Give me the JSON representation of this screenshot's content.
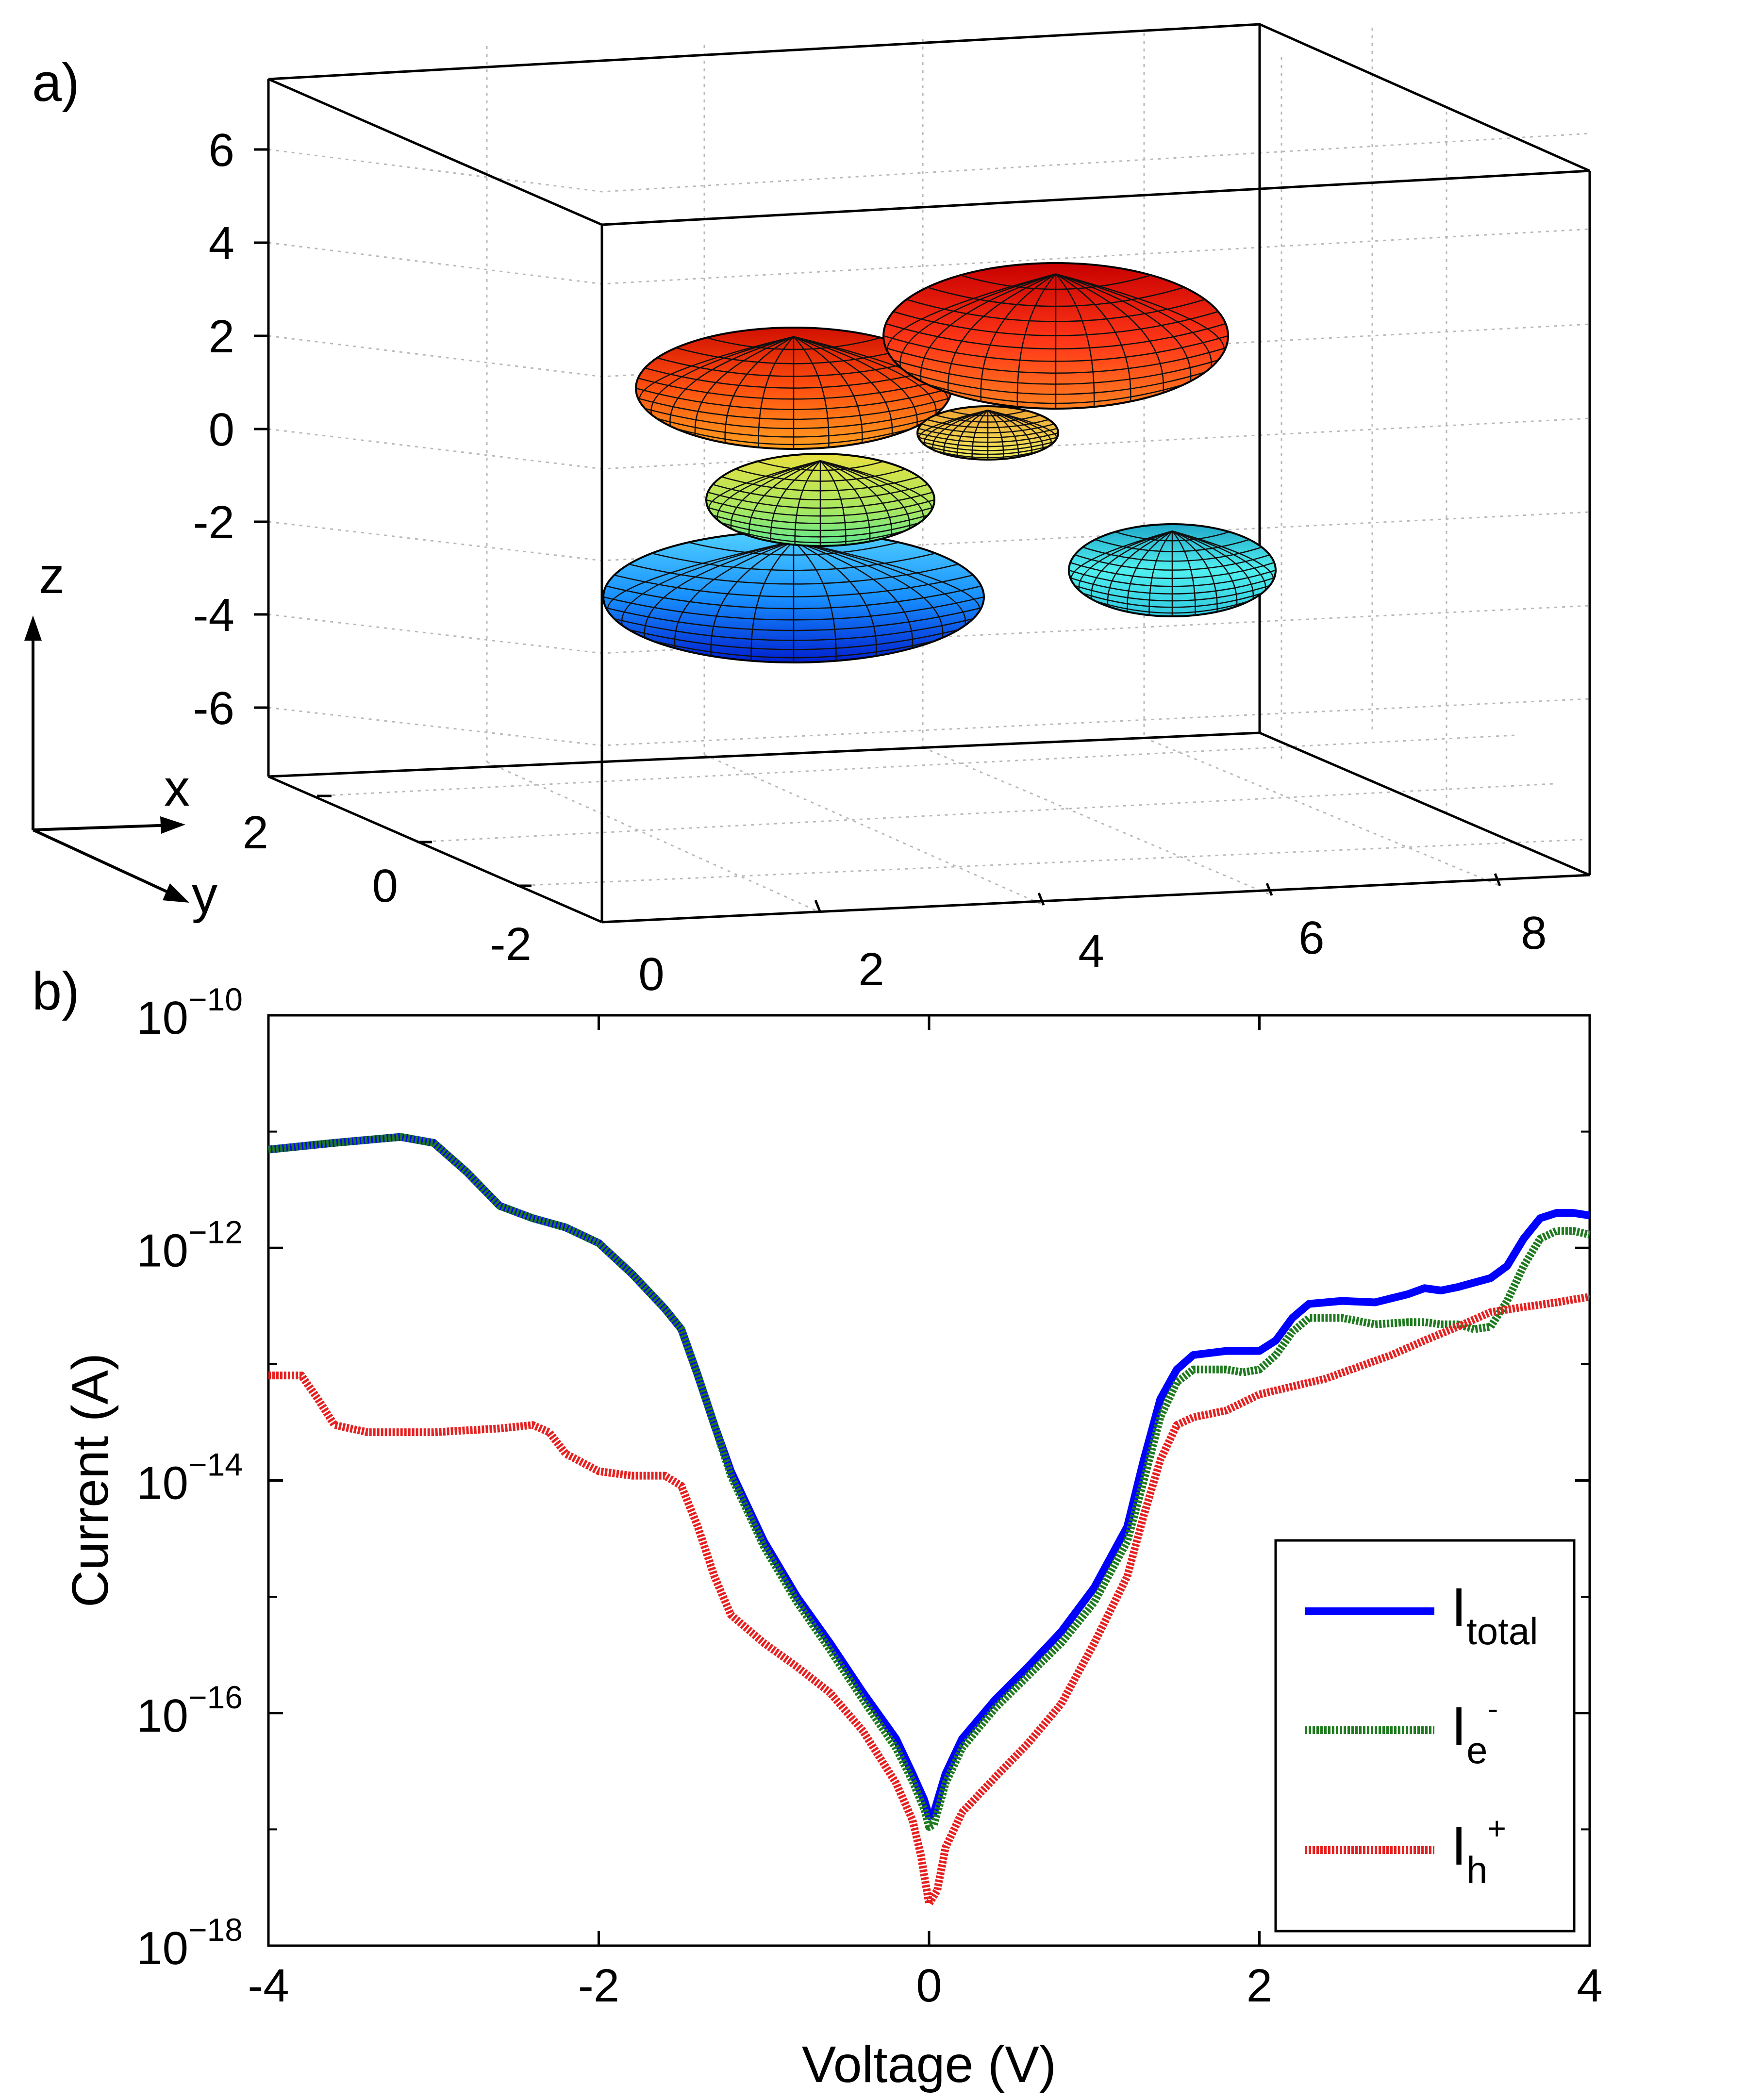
{
  "panel_a": {
    "label": "a)",
    "axis_letters": {
      "x": "x",
      "y": "y",
      "z": "z"
    },
    "z_ticks": [
      "6",
      "4",
      "2",
      "0",
      "-2",
      "-4",
      "-6"
    ],
    "y_ticks": [
      "2",
      "0",
      "-2"
    ],
    "x_ticks": [
      "0",
      "2",
      "4",
      "6",
      "8"
    ],
    "ellipsoids": [
      {
        "name": "ellipsoid-red-large",
        "color": "#e8321c"
      },
      {
        "name": "ellipsoid-orange",
        "color": "#f0641e"
      },
      {
        "name": "ellipsoid-yellow-small",
        "color": "#e0c040"
      },
      {
        "name": "ellipsoid-yellow-green",
        "color": "#b8e050"
      },
      {
        "name": "ellipsoid-blue",
        "color": "#1e8ce6"
      },
      {
        "name": "ellipsoid-cyan",
        "color": "#32c8dc"
      }
    ]
  },
  "panel_b": {
    "label": "b)"
  },
  "chart_data": {
    "type": "line",
    "xlabel": "Voltage (V)",
    "ylabel": "Current (A)",
    "xlim": [
      -4,
      4
    ],
    "ylim": [
      1e-18,
      1e-10
    ],
    "yscale": "log",
    "x_ticks": [
      "-4",
      "-2",
      "0",
      "2",
      "4"
    ],
    "y_ticks": [
      {
        "base": "10",
        "exp": "-10"
      },
      {
        "base": "10",
        "exp": "-12"
      },
      {
        "base": "10",
        "exp": "-14"
      },
      {
        "base": "10",
        "exp": "-16"
      },
      {
        "base": "10",
        "exp": "-18"
      }
    ],
    "legend_position": "bottom-right",
    "series": [
      {
        "name": "I_total",
        "legend_main": "I",
        "legend_sub": "total",
        "legend_sup": "",
        "color": "#0000ff",
        "style": "solid",
        "points": [
          [
            -4.0,
            7e-12
          ],
          [
            -3.6,
            8e-12
          ],
          [
            -3.2,
            9e-12
          ],
          [
            -3.0,
            8e-12
          ],
          [
            -2.8,
            4.5e-12
          ],
          [
            -2.6,
            2.3e-12
          ],
          [
            -2.4,
            1.8e-12
          ],
          [
            -2.2,
            1.5e-12
          ],
          [
            -2.0,
            1.1e-12
          ],
          [
            -1.8,
            6e-13
          ],
          [
            -1.6,
            3e-13
          ],
          [
            -1.5,
            2e-13
          ],
          [
            -1.4,
            8e-14
          ],
          [
            -1.3,
            3e-14
          ],
          [
            -1.2,
            1.2e-14
          ],
          [
            -1.0,
            3e-15
          ],
          [
            -0.8,
            1e-15
          ],
          [
            -0.6,
            4e-16
          ],
          [
            -0.4,
            1.5e-16
          ],
          [
            -0.2,
            6e-17
          ],
          [
            -0.1,
            3e-17
          ],
          [
            -0.03,
            1.8e-17
          ],
          [
            0.0,
            1.3e-17
          ],
          [
            0.03,
            1.4e-17
          ],
          [
            0.1,
            3e-17
          ],
          [
            0.2,
            6e-17
          ],
          [
            0.4,
            1.3e-16
          ],
          [
            0.6,
            2.5e-16
          ],
          [
            0.8,
            5e-16
          ],
          [
            1.0,
            1.2e-15
          ],
          [
            1.2,
            4e-15
          ],
          [
            1.3,
            1.5e-14
          ],
          [
            1.4,
            5e-14
          ],
          [
            1.5,
            9e-14
          ],
          [
            1.6,
            1.2e-13
          ],
          [
            1.8,
            1.3e-13
          ],
          [
            2.0,
            1.3e-13
          ],
          [
            2.1,
            1.6e-13
          ],
          [
            2.2,
            2.5e-13
          ],
          [
            2.3,
            3.3e-13
          ],
          [
            2.5,
            3.5e-13
          ],
          [
            2.7,
            3.4e-13
          ],
          [
            2.9,
            4e-13
          ],
          [
            3.0,
            4.5e-13
          ],
          [
            3.1,
            4.3e-13
          ],
          [
            3.2,
            4.6e-13
          ],
          [
            3.4,
            5.5e-13
          ],
          [
            3.5,
            7e-13
          ],
          [
            3.6,
            1.2e-12
          ],
          [
            3.7,
            1.8e-12
          ],
          [
            3.8,
            2e-12
          ],
          [
            3.9,
            2e-12
          ],
          [
            4.0,
            1.9e-12
          ]
        ]
      },
      {
        "name": "I_e-",
        "legend_main": "I",
        "legend_sub": "e",
        "legend_sup": "-",
        "color": "#1e7a1e",
        "style": "dotted",
        "points": [
          [
            -4.0,
            7e-12
          ],
          [
            -3.6,
            8e-12
          ],
          [
            -3.2,
            9e-12
          ],
          [
            -3.0,
            8e-12
          ],
          [
            -2.8,
            4.5e-12
          ],
          [
            -2.6,
            2.3e-12
          ],
          [
            -2.4,
            1.8e-12
          ],
          [
            -2.2,
            1.5e-12
          ],
          [
            -2.0,
            1.1e-12
          ],
          [
            -1.8,
            6e-13
          ],
          [
            -1.6,
            3e-13
          ],
          [
            -1.5,
            2e-13
          ],
          [
            -1.4,
            8e-14
          ],
          [
            -1.3,
            3e-14
          ],
          [
            -1.2,
            1.1e-14
          ],
          [
            -1.0,
            2.7e-15
          ],
          [
            -0.8,
            9e-16
          ],
          [
            -0.6,
            3.5e-16
          ],
          [
            -0.4,
            1.3e-16
          ],
          [
            -0.2,
            5e-17
          ],
          [
            -0.1,
            2.6e-17
          ],
          [
            -0.03,
            1.5e-17
          ],
          [
            0.0,
            1.05e-17
          ],
          [
            0.03,
            1.1e-17
          ],
          [
            0.1,
            2.5e-17
          ],
          [
            0.2,
            5e-17
          ],
          [
            0.4,
            1.1e-16
          ],
          [
            0.6,
            2.1e-16
          ],
          [
            0.8,
            4e-16
          ],
          [
            1.0,
            9e-16
          ],
          [
            1.2,
            3e-15
          ],
          [
            1.3,
            1e-14
          ],
          [
            1.4,
            3.5e-14
          ],
          [
            1.5,
            7e-14
          ],
          [
            1.6,
            9e-14
          ],
          [
            1.8,
            9e-14
          ],
          [
            1.9,
            8.5e-14
          ],
          [
            2.0,
            9e-14
          ],
          [
            2.1,
            1.2e-13
          ],
          [
            2.2,
            1.9e-13
          ],
          [
            2.3,
            2.5e-13
          ],
          [
            2.5,
            2.5e-13
          ],
          [
            2.7,
            2.2e-13
          ],
          [
            2.9,
            2.3e-13
          ],
          [
            3.0,
            2.3e-13
          ],
          [
            3.1,
            2.2e-13
          ],
          [
            3.2,
            2.2e-13
          ],
          [
            3.3,
            2e-13
          ],
          [
            3.4,
            2.1e-13
          ],
          [
            3.5,
            3.5e-13
          ],
          [
            3.6,
            7e-13
          ],
          [
            3.7,
            1.2e-12
          ],
          [
            3.8,
            1.4e-12
          ],
          [
            3.9,
            1.4e-12
          ],
          [
            4.0,
            1.3e-12
          ]
        ]
      },
      {
        "name": "I_h+",
        "legend_main": "I",
        "legend_sub": "h",
        "legend_sup": "+",
        "color": "#e62020",
        "style": "dotted",
        "points": [
          [
            -4.0,
            8e-14
          ],
          [
            -3.8,
            8e-14
          ],
          [
            -3.7,
            5e-14
          ],
          [
            -3.6,
            3e-14
          ],
          [
            -3.4,
            2.6e-14
          ],
          [
            -3.0,
            2.6e-14
          ],
          [
            -2.6,
            2.8e-14
          ],
          [
            -2.4,
            3e-14
          ],
          [
            -2.3,
            2.6e-14
          ],
          [
            -2.2,
            1.7e-14
          ],
          [
            -2.0,
            1.2e-14
          ],
          [
            -1.8,
            1.1e-14
          ],
          [
            -1.6,
            1.1e-14
          ],
          [
            -1.5,
            9e-15
          ],
          [
            -1.4,
            4e-15
          ],
          [
            -1.3,
            1.5e-15
          ],
          [
            -1.2,
            7e-16
          ],
          [
            -1.0,
            4e-16
          ],
          [
            -0.8,
            2.5e-16
          ],
          [
            -0.6,
            1.5e-16
          ],
          [
            -0.4,
            7e-17
          ],
          [
            -0.2,
            2.5e-17
          ],
          [
            -0.1,
            1.2e-17
          ],
          [
            -0.05,
            6e-18
          ],
          [
            0.0,
            2.3e-18
          ],
          [
            0.05,
            3e-18
          ],
          [
            0.1,
            7e-18
          ],
          [
            0.2,
            1.4e-17
          ],
          [
            0.4,
            2.8e-17
          ],
          [
            0.6,
            5.5e-17
          ],
          [
            0.8,
            1.2e-16
          ],
          [
            1.0,
            4e-16
          ],
          [
            1.2,
            1.5e-15
          ],
          [
            1.3,
            5e-15
          ],
          [
            1.4,
            1.5e-14
          ],
          [
            1.5,
            3e-14
          ],
          [
            1.6,
            3.5e-14
          ],
          [
            1.8,
            4e-14
          ],
          [
            2.0,
            5.5e-14
          ],
          [
            2.4,
            7.5e-14
          ],
          [
            2.8,
            1.2e-13
          ],
          [
            3.0,
            1.6e-13
          ],
          [
            3.2,
            2.1e-13
          ],
          [
            3.4,
            2.8e-13
          ],
          [
            3.6,
            3.1e-13
          ],
          [
            3.8,
            3.4e-13
          ],
          [
            4.0,
            3.8e-13
          ]
        ]
      }
    ]
  }
}
